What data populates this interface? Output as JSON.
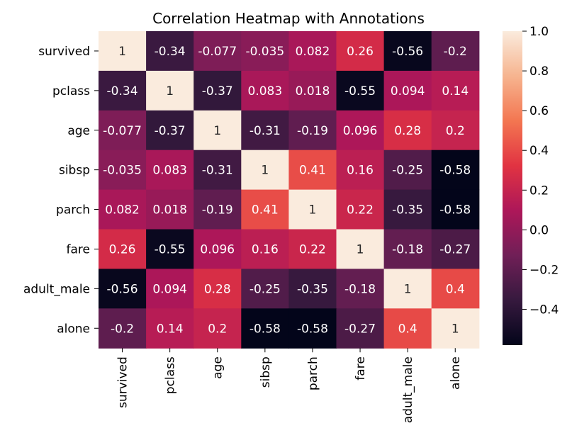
{
  "chart_data": {
    "type": "heatmap",
    "title": "Correlation Heatmap with Annotations",
    "rows": [
      "survived",
      "pclass",
      "age",
      "sibsp",
      "parch",
      "fare",
      "adult_male",
      "alone"
    ],
    "columns": [
      "survived",
      "pclass",
      "age",
      "sibsp",
      "parch",
      "fare",
      "adult_male",
      "alone"
    ],
    "values": [
      [
        1,
        -0.34,
        -0.077,
        -0.035,
        0.082,
        0.26,
        -0.56,
        -0.2
      ],
      [
        -0.34,
        1,
        -0.37,
        0.083,
        0.018,
        -0.55,
        0.094,
        0.14
      ],
      [
        -0.077,
        -0.37,
        1,
        -0.31,
        -0.19,
        0.096,
        0.28,
        0.2
      ],
      [
        -0.035,
        0.083,
        -0.31,
        1,
        0.41,
        0.16,
        -0.25,
        -0.58
      ],
      [
        0.082,
        0.018,
        -0.19,
        0.41,
        1,
        0.22,
        -0.35,
        -0.58
      ],
      [
        0.26,
        -0.55,
        0.096,
        0.16,
        0.22,
        1,
        -0.18,
        -0.27
      ],
      [
        -0.56,
        0.094,
        0.28,
        -0.25,
        -0.35,
        -0.18,
        1,
        0.4
      ],
      [
        -0.2,
        0.14,
        0.2,
        -0.58,
        -0.58,
        -0.27,
        0.4,
        1
      ]
    ],
    "colorbar": {
      "min": -0.58,
      "max": 1.0,
      "ticks": [
        1.0,
        0.8,
        0.6,
        0.4,
        0.2,
        0.0,
        -0.2,
        -0.4
      ],
      "tick_labels": [
        "1.0",
        "0.8",
        "0.6",
        "0.4",
        "0.2",
        "0.0",
        "−0.2",
        "−0.4"
      ],
      "colormap": "rocket",
      "colors": [
        "#03051a",
        "#36193e",
        "#701f57",
        "#ad1759",
        "#e13342",
        "#f37651",
        "#f6b48f",
        "#faebdd"
      ]
    },
    "annotations": true,
    "grid": false,
    "annotation_colors": {
      "dark_text": "#262626",
      "light_text": "#ffffff"
    }
  }
}
